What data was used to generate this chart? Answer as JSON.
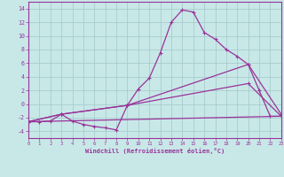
{
  "background_color": "#c8e8e8",
  "grid_color": "#a8cccc",
  "line_color": "#993399",
  "xlabel": "Windchill (Refroidissement éolien,°C)",
  "x_ticks": [
    0,
    1,
    2,
    3,
    4,
    5,
    6,
    7,
    8,
    9,
    10,
    11,
    12,
    13,
    14,
    15,
    16,
    17,
    18,
    19,
    20,
    21,
    22,
    23
  ],
  "y_ticks": [
    -4,
    -2,
    0,
    2,
    4,
    6,
    8,
    10,
    12,
    14
  ],
  "xlim": [
    0,
    23
  ],
  "ylim": [
    -5,
    15
  ],
  "line1_x": [
    0,
    1,
    2,
    3,
    4,
    5,
    6,
    7,
    8,
    9,
    10,
    11,
    12,
    13,
    14,
    15,
    16,
    17,
    18,
    19,
    20,
    21,
    22,
    23
  ],
  "line1_y": [
    -2.6,
    -2.6,
    -2.5,
    -1.5,
    -2.5,
    -3.0,
    -3.3,
    -3.5,
    -3.8,
    -0.2,
    2.2,
    3.8,
    7.5,
    12.0,
    13.8,
    13.5,
    10.5,
    9.5,
    8.0,
    7.0,
    5.8,
    2.0,
    -1.8,
    -1.8
  ],
  "line2_x": [
    0,
    3,
    9,
    20,
    23
  ],
  "line2_y": [
    -2.6,
    -1.5,
    -0.2,
    5.8,
    -1.5
  ],
  "line3_x": [
    0,
    3,
    9,
    20,
    23
  ],
  "line3_y": [
    -2.6,
    -1.5,
    -0.2,
    3.0,
    -1.8
  ],
  "line4_x": [
    0,
    23
  ],
  "line4_y": [
    -2.6,
    -1.8
  ]
}
